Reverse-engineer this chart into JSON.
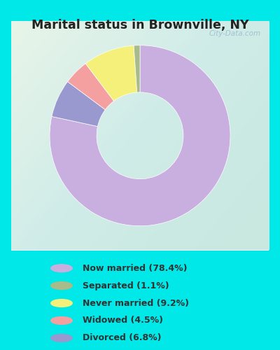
{
  "title": "Marital status in Brownville, NY",
  "slices": [
    78.4,
    6.8,
    4.5,
    9.2,
    1.1
  ],
  "labels": [
    "Now married (78.4%)",
    "Separated (1.1%)",
    "Never married (9.2%)",
    "Widowed (4.5%)",
    "Divorced (6.8%)"
  ],
  "legend_colors": [
    "#c9aee0",
    "#a8bb8a",
    "#f5f07a",
    "#f4a0a0",
    "#9999d0"
  ],
  "slice_colors": [
    "#c9aee0",
    "#9999d0",
    "#f4a0a0",
    "#f5f07a",
    "#a8bb8a"
  ],
  "bg_outer": "#00e8e8",
  "watermark": "City-Data.com",
  "donut_width": 0.52,
  "start_angle": 90
}
